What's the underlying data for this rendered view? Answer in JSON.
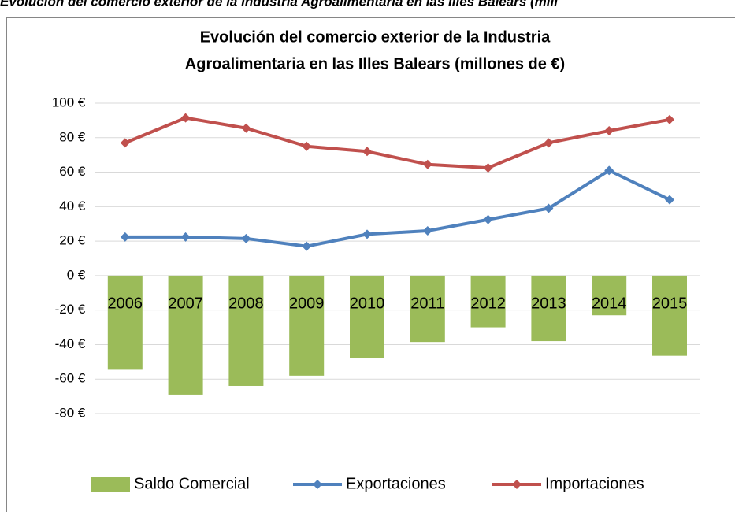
{
  "caption": "Evolución del comercio exterior de la Industria Agroalimentaria en las Illes Balears (mill",
  "chart_data": {
    "type": "combo",
    "title": [
      "Evolución del comercio exterior de la Industria",
      "Agroalimentaria en las Illes Balears (millones de €)"
    ],
    "categories": [
      "2006",
      "2007",
      "2008",
      "2009",
      "2010",
      "2011",
      "2012",
      "2013",
      "2014",
      "2015"
    ],
    "series": [
      {
        "name": "Saldo Comercial",
        "type": "bar",
        "color": "#9bbb59",
        "values": [
          -54.6,
          -69,
          -64,
          -58,
          -48,
          -38.5,
          -30,
          -38,
          -23,
          -46.5
        ]
      },
      {
        "name": "Exportaciones",
        "type": "line",
        "color": "#4f81bd",
        "values": [
          22.4,
          22.4,
          21.5,
          17,
          24,
          26,
          32.5,
          39,
          61,
          44
        ]
      },
      {
        "name": "Importaciones",
        "type": "line",
        "color": "#c0504d",
        "values": [
          77,
          91.5,
          85.5,
          75,
          72,
          64.5,
          62.5,
          77,
          84,
          90.5
        ]
      }
    ],
    "ylim": [
      -80,
      100
    ],
    "yticks": [
      {
        "value": -80,
        "label": "-80 €"
      },
      {
        "value": -60,
        "label": "-60 €"
      },
      {
        "value": -40,
        "label": "-40 €"
      },
      {
        "value": -20,
        "label": "-20 €"
      },
      {
        "value": 0,
        "label": "0 €"
      },
      {
        "value": 20,
        "label": "20 €"
      },
      {
        "value": 40,
        "label": "40 €"
      },
      {
        "value": 60,
        "label": "60 €"
      },
      {
        "value": 80,
        "label": "80 €"
      },
      {
        "value": 100,
        "label": "100 €"
      }
    ],
    "grid": true,
    "legend": "bottom"
  }
}
